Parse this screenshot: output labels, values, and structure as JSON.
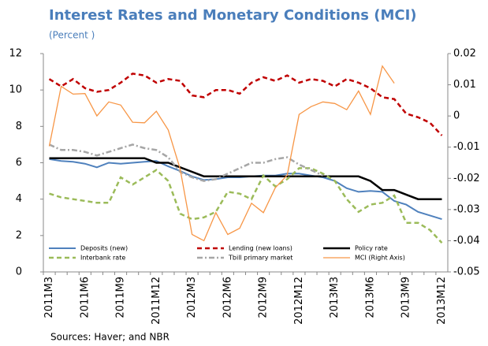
{
  "chart_data": {
    "type": "line",
    "title": "Interest Rates and Monetary Conditions (MCI)",
    "subtitle": "(Percent )",
    "source": "Sources: Haver; and NBR",
    "categories": [
      "2011M3",
      null,
      null,
      "2011M6",
      null,
      null,
      "2011M9",
      null,
      null,
      "2011M12",
      null,
      null,
      "2012M3",
      null,
      null,
      "2012M6",
      null,
      null,
      "2012M9",
      null,
      null,
      "2012M12",
      null,
      null,
      "2013M3",
      null,
      null,
      "2013M6",
      null,
      null,
      "2013M9",
      null,
      null,
      "2013M12"
    ],
    "ylim": [
      0,
      12
    ],
    "yticks": [
      0,
      2,
      4,
      6,
      8,
      10,
      12
    ],
    "y2lim": [
      -0.05,
      0.02
    ],
    "y2ticks": [
      -0.05,
      -0.04,
      -0.03,
      -0.02,
      -0.01,
      0,
      0.01,
      0.02
    ],
    "legend": "bottom",
    "series": [
      {
        "name": "Deposits (new)",
        "color": "#4f81bd",
        "style": "solid",
        "values": [
          6.2,
          6.1,
          6.05,
          5.95,
          5.75,
          6.0,
          5.95,
          6.0,
          6.05,
          6.1,
          5.8,
          5.55,
          5.25,
          5.05,
          5.1,
          5.2,
          5.2,
          5.25,
          5.3,
          5.3,
          5.4,
          5.4,
          5.3,
          5.2,
          5.0,
          4.6,
          4.4,
          4.45,
          4.4,
          3.9,
          3.7,
          3.3,
          3.1,
          2.9
        ]
      },
      {
        "name": "Lending (new loans)",
        "color": "#c00000",
        "style": "dashed",
        "values": [
          10.6,
          10.2,
          10.6,
          10.1,
          9.9,
          10.0,
          10.4,
          10.9,
          10.8,
          10.4,
          10.6,
          10.5,
          9.7,
          9.6,
          10.0,
          10.0,
          9.8,
          10.4,
          10.7,
          10.5,
          10.8,
          10.4,
          10.6,
          10.5,
          10.2,
          10.6,
          10.4,
          10.1,
          9.6,
          9.5,
          8.7,
          8.5,
          8.2,
          7.5
        ]
      },
      {
        "name": "Policy rate",
        "color": "#000000",
        "style": "thick",
        "values": [
          6.25,
          6.25,
          6.25,
          6.25,
          6.25,
          6.25,
          6.25,
          6.25,
          6.25,
          6.0,
          6.0,
          5.75,
          5.5,
          5.25,
          5.25,
          5.25,
          5.25,
          5.25,
          5.25,
          5.25,
          5.25,
          5.25,
          5.25,
          5.25,
          5.25,
          5.25,
          5.25,
          5.0,
          4.5,
          4.5,
          4.25,
          4.0,
          4.0,
          4.0
        ]
      },
      {
        "name": "Interbank rate",
        "color": "#9bbb59",
        "style": "dashed",
        "values": [
          4.3,
          4.1,
          4.0,
          3.9,
          3.8,
          3.8,
          5.2,
          4.8,
          5.2,
          5.6,
          5.0,
          3.2,
          2.9,
          3.0,
          3.3,
          4.4,
          4.3,
          4.0,
          5.3,
          4.7,
          5.1,
          5.7,
          5.7,
          5.4,
          5.0,
          4.0,
          3.3,
          3.7,
          3.8,
          4.2,
          2.7,
          2.7,
          2.3,
          1.6
        ]
      },
      {
        "name": "Tbill primary market",
        "color": "#a6a6a6",
        "style": "dashdot",
        "values": [
          7.0,
          6.7,
          6.7,
          6.6,
          6.4,
          6.6,
          6.8,
          7.0,
          6.8,
          6.7,
          6.3,
          5.5,
          5.2,
          5.0,
          5.1,
          5.4,
          5.7,
          6.0,
          6.0,
          6.2,
          6.3,
          5.9,
          5.6,
          5.3,
          null,
          null,
          null,
          null,
          null,
          null,
          null,
          null,
          null,
          null
        ]
      },
      {
        "name": "MCI (Right Axis)",
        "color": "#f79646",
        "style": "thin",
        "axis": "y2",
        "values": [
          -0.0097,
          0.0095,
          0.007,
          0.0072,
          0,
          0.0045,
          0.0035,
          -0.002,
          -0.0022,
          0.0015,
          -0.0045,
          -0.017,
          -0.038,
          -0.04,
          -0.031,
          -0.038,
          -0.036,
          -0.028,
          -0.031,
          -0.023,
          -0.019,
          0.0005,
          0.003,
          0.0045,
          0.004,
          0.002,
          0.008,
          0.0005,
          0.016,
          0.0105,
          null,
          null,
          null,
          null
        ]
      }
    ]
  }
}
